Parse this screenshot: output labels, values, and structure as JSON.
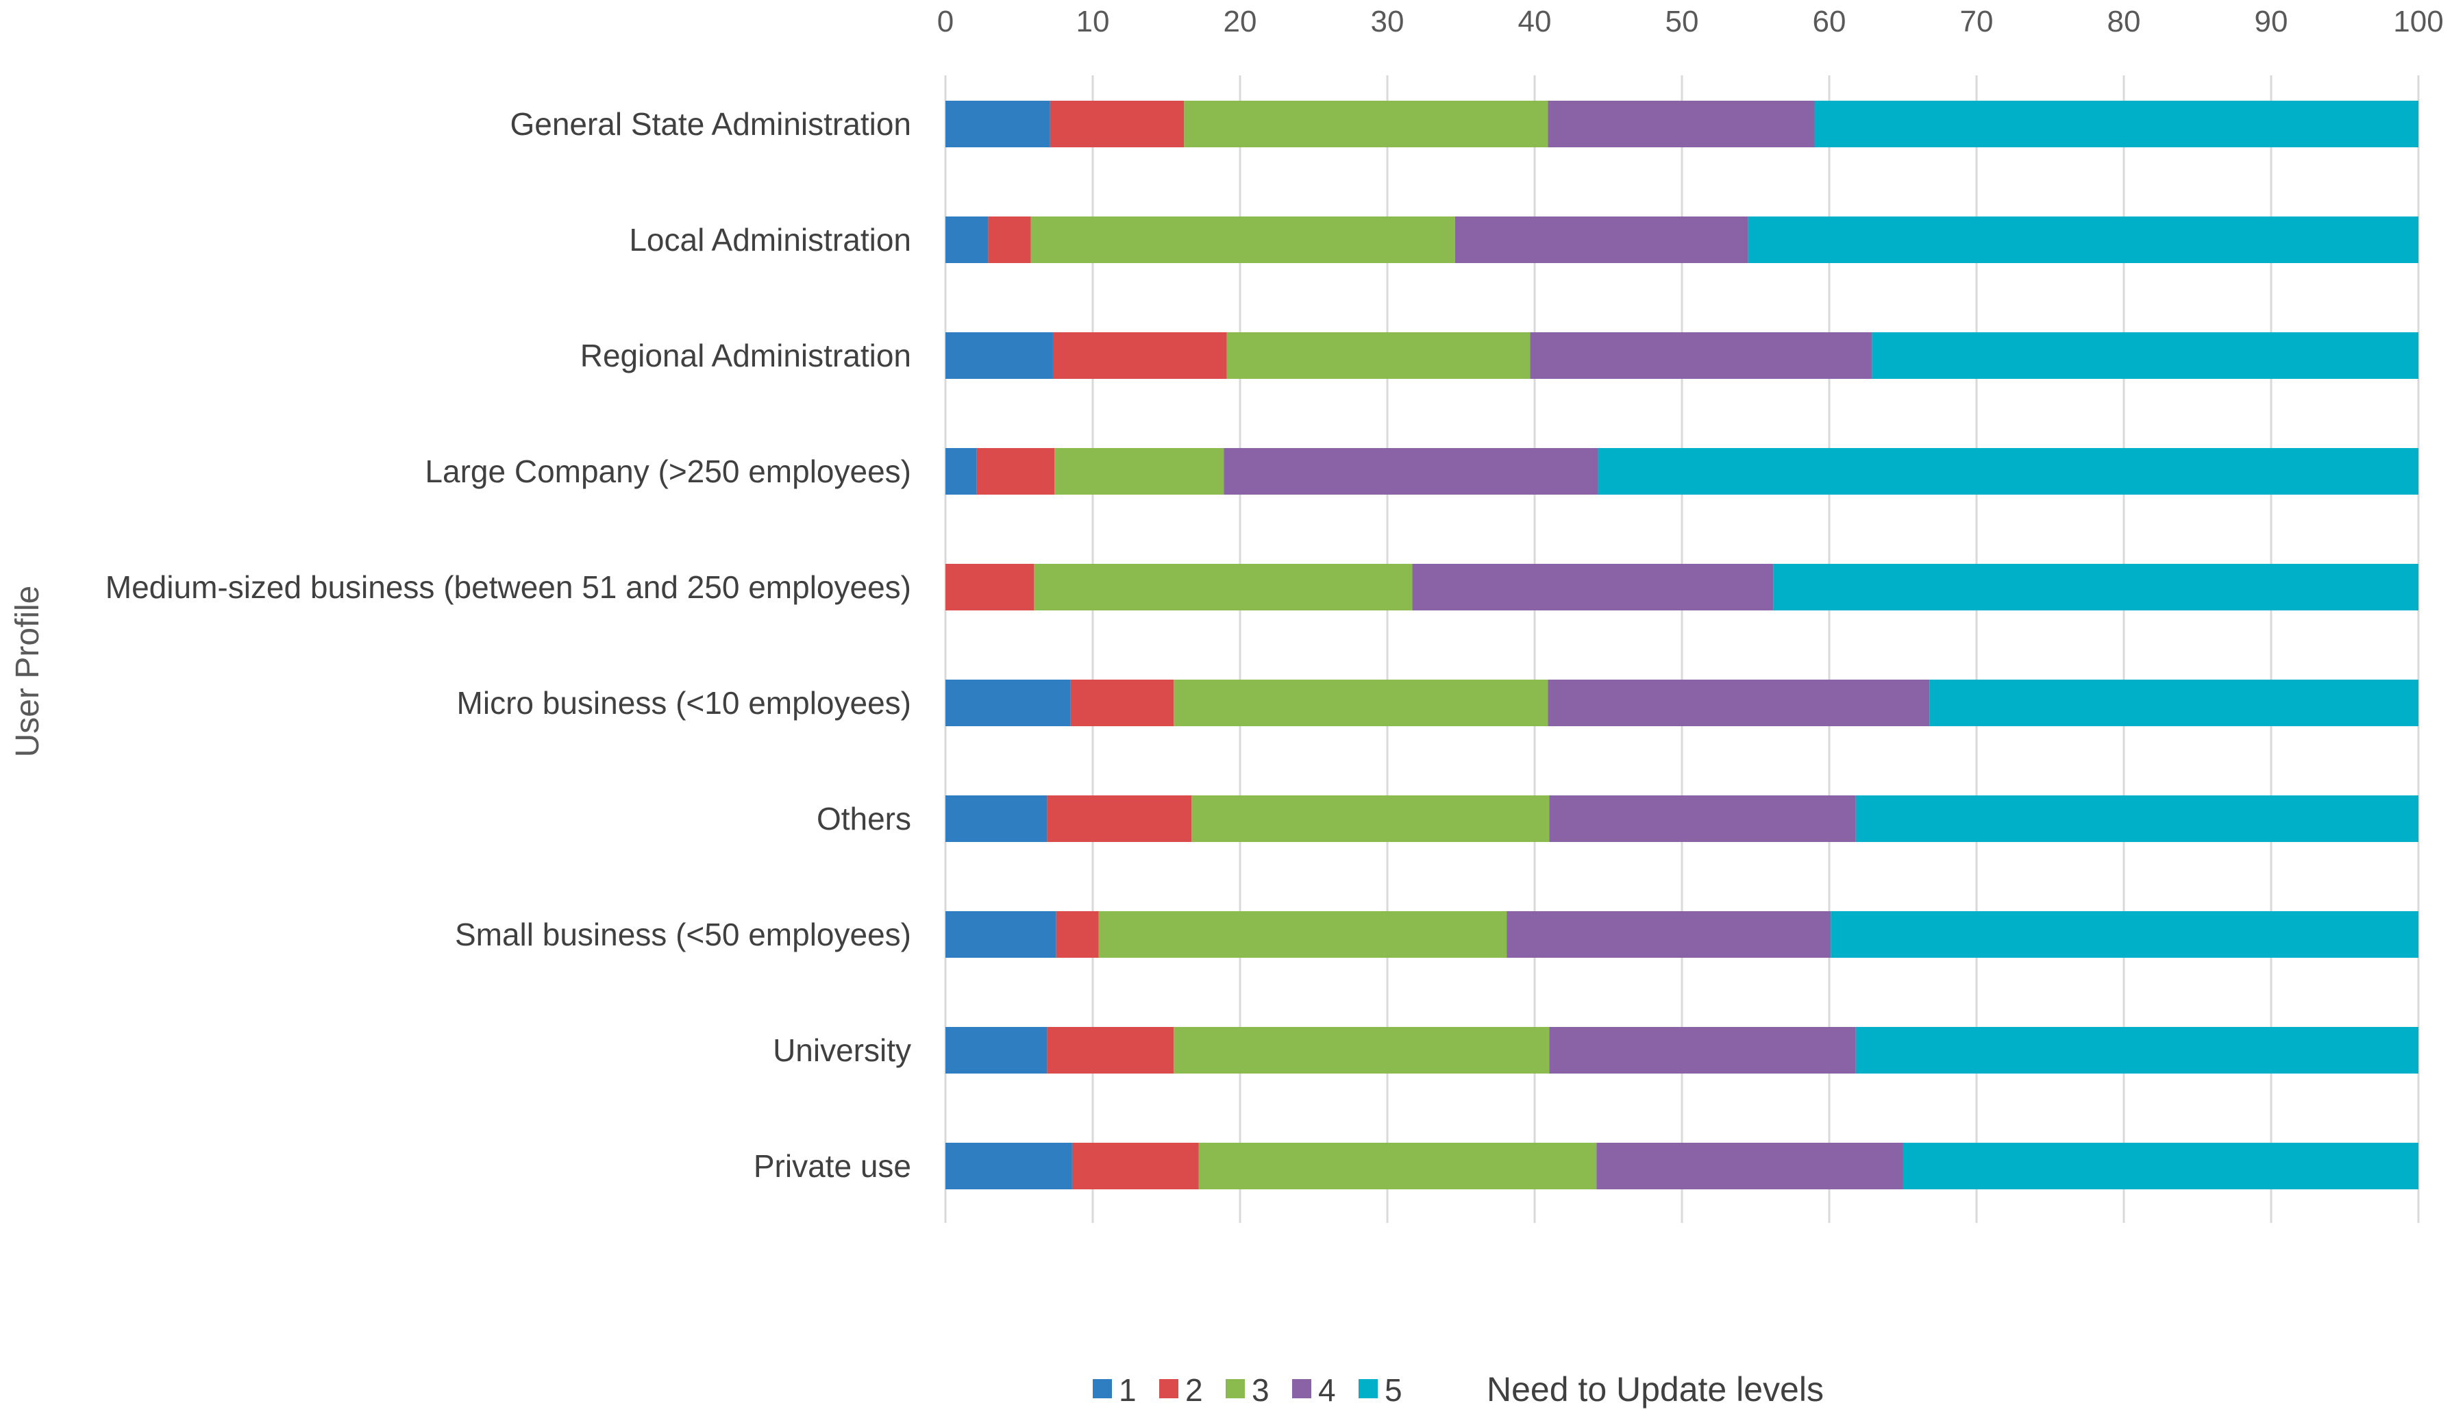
{
  "chart_data": {
    "type": "bar",
    "orientation": "horizontal",
    "stacked": true,
    "title": "",
    "ylabel": "User Profile",
    "xlabel": "",
    "xlim": [
      0,
      100
    ],
    "xticks": [
      "0",
      "10",
      "20",
      "30",
      "40",
      "50",
      "60",
      "70",
      "80",
      "90",
      "100"
    ],
    "grid": true,
    "legend_position": "bottom",
    "legend_title": "Need to Update levels",
    "categories": [
      "General State Administration",
      "Local Administration",
      "Regional Administration",
      "Large Company (>250 employees)",
      "Medium-sized business (between 51 and 250 employees)",
      "Micro business (<10 employees)",
      "Others",
      "Small business (<50 employees)",
      "University",
      "Private use"
    ],
    "series": [
      {
        "name": "1",
        "color": "#2E7EC1",
        "values": [
          7.1,
          2.9,
          7.3,
          2.1,
          0.0,
          8.5,
          6.9,
          7.5,
          6.9,
          8.6
        ]
      },
      {
        "name": "2",
        "color": "#DC4B4B",
        "values": [
          9.1,
          2.9,
          11.8,
          5.3,
          6.0,
          7.0,
          9.8,
          2.9,
          8.6,
          8.6
        ]
      },
      {
        "name": "3",
        "color": "#8BBB4E",
        "values": [
          24.7,
          28.8,
          20.6,
          11.5,
          25.7,
          25.4,
          24.3,
          27.7,
          25.5,
          27.0
        ]
      },
      {
        "name": "4",
        "color": "#8A63A6",
        "values": [
          18.1,
          19.9,
          23.2,
          25.4,
          24.5,
          25.9,
          20.8,
          22.0,
          20.8,
          20.8
        ]
      },
      {
        "name": "5",
        "color": "#00B0C8",
        "values": [
          41.0,
          45.5,
          37.1,
          55.7,
          43.8,
          33.2,
          38.2,
          39.9,
          38.2,
          35.0
        ]
      }
    ]
  }
}
